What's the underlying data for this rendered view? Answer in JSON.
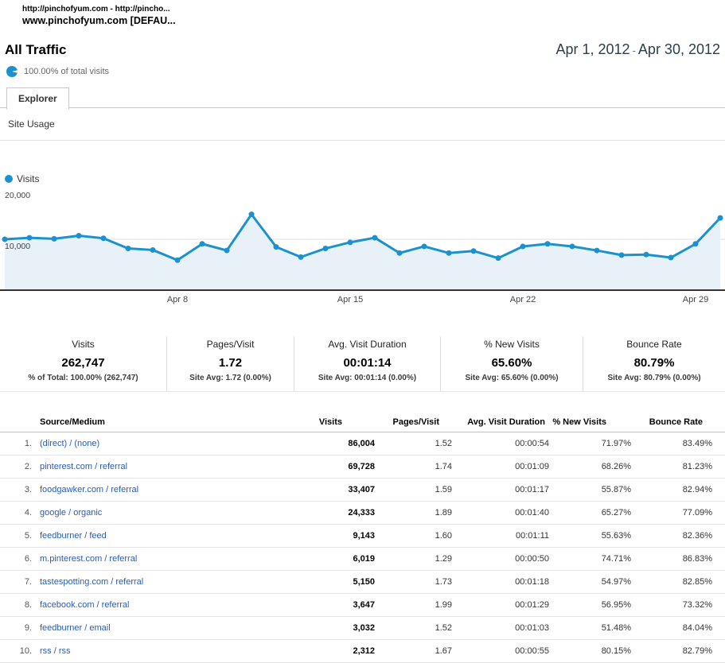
{
  "window": {
    "line1": "http://pinchofyum.com - http://pincho...",
    "line2": "www.pinchofyum.com [DEFAU..."
  },
  "header": {
    "title": "All Traffic",
    "date_start": "Apr 1, 2012",
    "date_separator": "-",
    "date_end": "Apr 30, 2012",
    "subtitle": "100.00% of total visits"
  },
  "tabs": {
    "explorer": "Explorer"
  },
  "toolbar": {
    "site_usage": "Site Usage"
  },
  "chart_data": {
    "type": "line",
    "title": "Visits over time",
    "legend_position": "top-left",
    "x": [
      "Apr 1",
      "Apr 2",
      "Apr 3",
      "Apr 4",
      "Apr 5",
      "Apr 6",
      "Apr 7",
      "Apr 8",
      "Apr 9",
      "Apr 10",
      "Apr 11",
      "Apr 12",
      "Apr 13",
      "Apr 14",
      "Apr 15",
      "Apr 16",
      "Apr 17",
      "Apr 18",
      "Apr 19",
      "Apr 20",
      "Apr 21",
      "Apr 22",
      "Apr 23",
      "Apr 24",
      "Apr 25",
      "Apr 26",
      "Apr 27",
      "Apr 28",
      "Apr 29",
      "Apr 30"
    ],
    "series": [
      {
        "name": "Visits",
        "values": [
          10000,
          10300,
          10100,
          10700,
          10200,
          8200,
          7900,
          5900,
          9100,
          7800,
          14900,
          8500,
          6500,
          8200,
          9400,
          10300,
          7300,
          8600,
          7300,
          7700,
          6300,
          8600,
          9100,
          8600,
          7800,
          6900,
          7000,
          6400,
          9100,
          14200
        ]
      }
    ],
    "ylim": [
      0,
      20000
    ],
    "y_axis": [
      {
        "label": "20,000",
        "value": 20000,
        "line": false
      },
      {
        "label": "10,000",
        "value": 10000,
        "line": true
      }
    ],
    "x_ticks": [
      {
        "label": "Apr 8",
        "index": 7
      },
      {
        "label": "Apr 15",
        "index": 14
      },
      {
        "label": "Apr 22",
        "index": 21
      },
      {
        "label": "Apr 29",
        "index": 28
      }
    ],
    "line_color": "#1c91cf",
    "fill_color": "#e8f1f8",
    "axis_color": "#333333",
    "grid_color": "#e0e0e0"
  },
  "metrics": [
    {
      "label": "Visits",
      "value": "262,747",
      "sub": "% of Total: 100.00% (262,747)"
    },
    {
      "label": "Pages/Visit",
      "value": "1.72",
      "sub": "Site Avg: 1.72 (0.00%)"
    },
    {
      "label": "Avg. Visit Duration",
      "value": "00:01:14",
      "sub": "Site Avg: 00:01:14 (0.00%)"
    },
    {
      "label": "% New Visits",
      "value": "65.60%",
      "sub": "Site Avg: 65.60% (0.00%)"
    },
    {
      "label": "Bounce Rate",
      "value": "80.79%",
      "sub": "Site Avg: 80.79% (0.00%)"
    }
  ],
  "table": {
    "columns": [
      "Source/Medium",
      "Visits",
      "Pages/Visit",
      "Avg. Visit Duration",
      "% New Visits",
      "Bounce Rate"
    ],
    "rows": [
      {
        "rank": "1.",
        "source": "(direct) / (none)",
        "visits": "86,004",
        "pages": "1.52",
        "duration": "00:00:54",
        "new_visits": "71.97%",
        "bounce": "83.49%"
      },
      {
        "rank": "2.",
        "source": "pinterest.com / referral",
        "visits": "69,728",
        "pages": "1.74",
        "duration": "00:01:09",
        "new_visits": "68.26%",
        "bounce": "81.23%"
      },
      {
        "rank": "3.",
        "source": "foodgawker.com / referral",
        "visits": "33,407",
        "pages": "1.59",
        "duration": "00:01:17",
        "new_visits": "55.87%",
        "bounce": "82.94%"
      },
      {
        "rank": "4.",
        "source": "google / organic",
        "visits": "24,333",
        "pages": "1.89",
        "duration": "00:01:40",
        "new_visits": "65.27%",
        "bounce": "77.09%"
      },
      {
        "rank": "5.",
        "source": "feedburner / feed",
        "visits": "9,143",
        "pages": "1.60",
        "duration": "00:01:11",
        "new_visits": "55.63%",
        "bounce": "82.36%"
      },
      {
        "rank": "6.",
        "source": "m.pinterest.com / referral",
        "visits": "6,019",
        "pages": "1.29",
        "duration": "00:00:50",
        "new_visits": "74.71%",
        "bounce": "86.83%"
      },
      {
        "rank": "7.",
        "source": "tastespotting.com / referral",
        "visits": "5,150",
        "pages": "1.73",
        "duration": "00:01:18",
        "new_visits": "54.97%",
        "bounce": "82.85%"
      },
      {
        "rank": "8.",
        "source": "facebook.com / referral",
        "visits": "3,647",
        "pages": "1.99",
        "duration": "00:01:29",
        "new_visits": "56.95%",
        "bounce": "73.32%"
      },
      {
        "rank": "9.",
        "source": "feedburner / email",
        "visits": "3,032",
        "pages": "1.52",
        "duration": "00:01:03",
        "new_visits": "51.48%",
        "bounce": "84.04%"
      },
      {
        "rank": "10.",
        "source": "rss / rss",
        "visits": "2,312",
        "pages": "1.67",
        "duration": "00:00:55",
        "new_visits": "80.15%",
        "bounce": "82.79%"
      }
    ]
  },
  "colors": {
    "accent_blue": "#1c91cf",
    "link_blue": "#2a5db0",
    "date_text": "#2b3d4f"
  }
}
